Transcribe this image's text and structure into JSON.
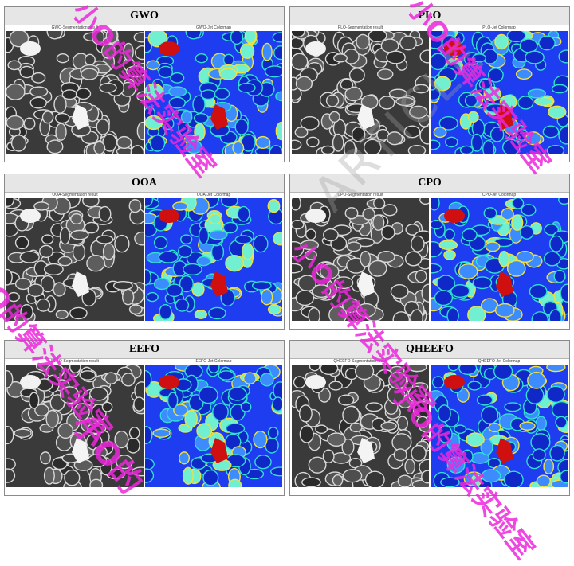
{
  "panels": [
    {
      "title": "GWO",
      "seg_label": "GWO-Segmentation result",
      "jet_label": "GWO-Jet Colormap"
    },
    {
      "title": "PLO",
      "seg_label": "PLO-Segmentation result",
      "jet_label": "PLO-Jet Colormap"
    },
    {
      "title": "OOA",
      "seg_label": "OOA-Segmentation result",
      "jet_label": "OOA-Jet Colormap"
    },
    {
      "title": "CPO",
      "seg_label": "CPO-Segmentation result",
      "jet_label": "CPO-Jet Colormap"
    },
    {
      "title": "EEFO",
      "seg_label": "EEFO-Segmentation result",
      "jet_label": "EEFO-Jet Colormap"
    },
    {
      "title": "QHEEFO",
      "seg_label": "QHEEFO-Segmentation result",
      "jet_label": "QHEEFO-Jet Colormap"
    }
  ],
  "watermark": {
    "text": "小O的算法实验室",
    "short": "小O的",
    "article": "ARTICLE"
  },
  "colors": {
    "watermark": "#ec28dc",
    "jet_bg": "#1e3cf0",
    "jet_edge": "#30e0d0",
    "jet_hot": "#d01010"
  }
}
